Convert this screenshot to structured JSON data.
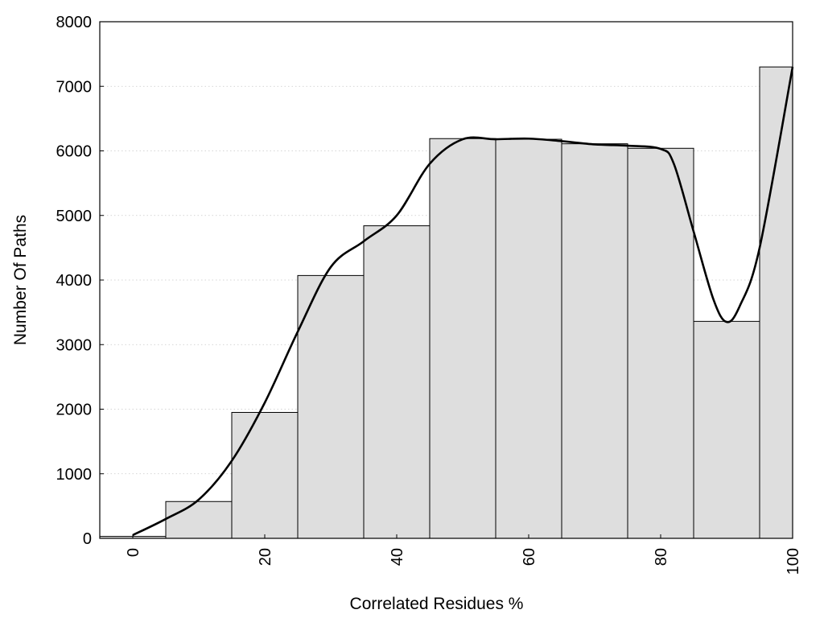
{
  "chart_data": {
    "type": "bar",
    "title": "",
    "xlabel": "Correlated Residues %",
    "ylabel": "Number Of Paths",
    "xlim": [
      -5,
      100
    ],
    "ylim": [
      0,
      8000
    ],
    "grid": true,
    "x_ticks": [
      0,
      20,
      40,
      60,
      80,
      100
    ],
    "y_ticks": [
      0,
      1000,
      2000,
      3000,
      4000,
      5000,
      6000,
      7000,
      8000
    ],
    "bins": [
      {
        "start": -5,
        "end": 5,
        "value": 30
      },
      {
        "start": 5,
        "end": 15,
        "value": 570
      },
      {
        "start": 15,
        "end": 25,
        "value": 1950
      },
      {
        "start": 25,
        "end": 35,
        "value": 4070
      },
      {
        "start": 35,
        "end": 45,
        "value": 4840
      },
      {
        "start": 45,
        "end": 55,
        "value": 6190
      },
      {
        "start": 55,
        "end": 65,
        "value": 6180
      },
      {
        "start": 65,
        "end": 75,
        "value": 6110
      },
      {
        "start": 75,
        "end": 85,
        "value": 6040
      },
      {
        "start": 85,
        "end": 95,
        "value": 3360
      },
      {
        "start": 95,
        "end": 100,
        "value": 7300
      }
    ],
    "curve": {
      "type": "line",
      "x": [
        0,
        5,
        10,
        15,
        20,
        25,
        30,
        35,
        40,
        45,
        50,
        55,
        60,
        65,
        70,
        75,
        80,
        82,
        85,
        88,
        90,
        92,
        95,
        100
      ],
      "y": [
        50,
        300,
        600,
        1200,
        2100,
        3200,
        4200,
        4600,
        5000,
        5800,
        6180,
        6180,
        6190,
        6150,
        6100,
        6080,
        6030,
        5800,
        4750,
        3700,
        3350,
        3600,
        4500,
        7300
      ]
    }
  }
}
